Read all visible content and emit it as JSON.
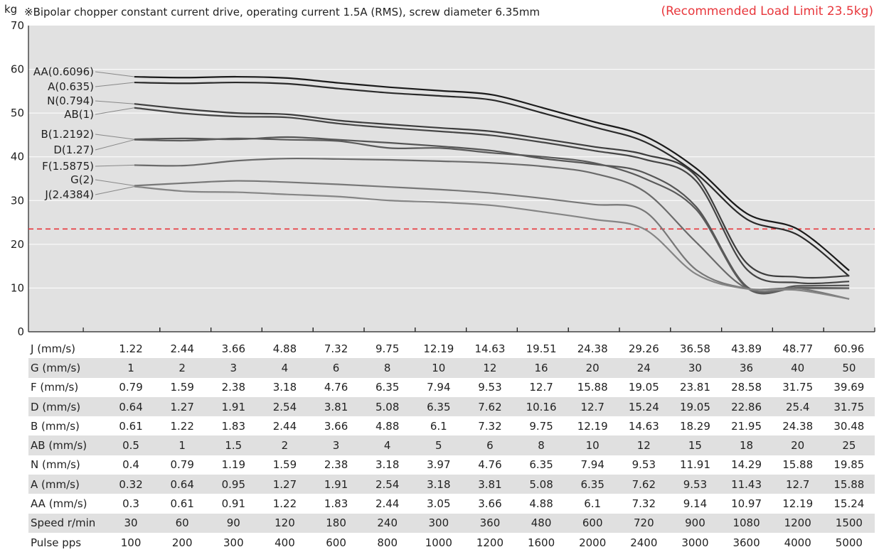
{
  "chart_data": {
    "type": "line",
    "title": "※Bipolar chopper constant current drive, operating current 1.5A (RMS), screw diameter 6.35mm",
    "ylabel": "kg",
    "ylim": [
      0,
      70
    ],
    "yticks": [
      0,
      10,
      20,
      30,
      40,
      50,
      60,
      70
    ],
    "grid": true,
    "pulse_pps": [
      100,
      200,
      300,
      400,
      600,
      800,
      1000,
      1200,
      1600,
      2000,
      2400,
      3000,
      3600,
      4000,
      5000
    ],
    "limit": {
      "label": "(Recommended Load Limit 23.5kg)",
      "value": 23.5,
      "color": "#e8373c"
    },
    "series": [
      {
        "name": "AA(0.6096)",
        "color": "#1a1a1a",
        "values": [
          58.3,
          58.1,
          58.3,
          58.0,
          56.9,
          55.9,
          55.1,
          54.2,
          51.2,
          48.0,
          44.7,
          37.4,
          27.0,
          23.4,
          14.0
        ]
      },
      {
        "name": "A(0.635)",
        "color": "#2a2a2a",
        "values": [
          57.0,
          56.8,
          57.0,
          56.7,
          55.6,
          54.6,
          53.9,
          53.0,
          50.0,
          46.8,
          43.4,
          36.2,
          25.7,
          22.1,
          12.7
        ]
      },
      {
        "name": "N(0.794)",
        "color": "#3d3d3d",
        "values": [
          52.1,
          50.9,
          50.0,
          49.7,
          48.3,
          47.4,
          46.6,
          45.8,
          44.1,
          42.3,
          40.5,
          35.6,
          15.6,
          12.5,
          12.8
        ]
      },
      {
        "name": "AB(1)",
        "color": "#454545",
        "values": [
          51.2,
          49.9,
          49.2,
          49.0,
          47.6,
          46.6,
          45.8,
          44.9,
          43.3,
          41.4,
          39.4,
          34.5,
          14.2,
          11.2,
          11.5
        ]
      },
      {
        "name": "B(1.2192)",
        "color": "#555555",
        "values": [
          44.0,
          44.2,
          44.0,
          44.5,
          43.9,
          43.2,
          42.4,
          41.4,
          39.6,
          38.3,
          36.3,
          28.6,
          10.3,
          10.5,
          10.6
        ]
      },
      {
        "name": "D(1.27)",
        "color": "#5a5a5a",
        "values": [
          43.9,
          43.7,
          44.2,
          43.9,
          43.6,
          42.0,
          42.0,
          40.9,
          40.0,
          38.6,
          35.0,
          28.0,
          10.0,
          10.1,
          10.0
        ]
      },
      {
        "name": "F(1.5875)",
        "color": "#6a6a6a",
        "values": [
          38.1,
          38.0,
          39.1,
          39.6,
          39.5,
          39.3,
          39.0,
          38.6,
          37.8,
          36.2,
          32.0,
          20.5,
          9.9,
          9.9,
          9.9
        ]
      },
      {
        "name": "G(2)",
        "color": "#777777",
        "values": [
          33.4,
          34.0,
          34.5,
          34.2,
          33.7,
          33.1,
          32.5,
          31.7,
          30.5,
          29.1,
          27.5,
          14.2,
          9.9,
          9.9,
          7.5
        ]
      },
      {
        "name": "J(2.4384)",
        "color": "#858585",
        "values": [
          33.2,
          32.1,
          31.9,
          31.4,
          30.9,
          30.0,
          29.6,
          28.9,
          27.4,
          25.7,
          23.4,
          13.2,
          9.8,
          9.5,
          7.5
        ]
      }
    ]
  },
  "table": {
    "rows": [
      {
        "label": "J (mm/s)",
        "values": [
          "1.22",
          "2.44",
          "3.66",
          "4.88",
          "7.32",
          "9.75",
          "12.19",
          "14.63",
          "19.51",
          "24.38",
          "29.26",
          "36.58",
          "43.89",
          "48.77",
          "60.96"
        ]
      },
      {
        "label": "G (mm/s)",
        "values": [
          "1",
          "2",
          "3",
          "4",
          "6",
          "8",
          "10",
          "12",
          "16",
          "20",
          "24",
          "30",
          "36",
          "40",
          "50"
        ]
      },
      {
        "label": "F (mm/s)",
        "values": [
          "0.79",
          "1.59",
          "2.38",
          "3.18",
          "4.76",
          "6.35",
          "7.94",
          "9.53",
          "12.7",
          "15.88",
          "19.05",
          "23.81",
          "28.58",
          "31.75",
          "39.69"
        ]
      },
      {
        "label": "D (mm/s)",
        "values": [
          "0.64",
          "1.27",
          "1.91",
          "2.54",
          "3.81",
          "5.08",
          "6.35",
          "7.62",
          "10.16",
          "12.7",
          "15.24",
          "19.05",
          "22.86",
          "25.4",
          "31.75"
        ]
      },
      {
        "label": "B (mm/s)",
        "values": [
          "0.61",
          "1.22",
          "1.83",
          "2.44",
          "3.66",
          "4.88",
          "6.1",
          "7.32",
          "9.75",
          "12.19",
          "14.63",
          "18.29",
          "21.95",
          "24.38",
          "30.48"
        ]
      },
      {
        "label": "AB (mm/s)",
        "values": [
          "0.5",
          "1",
          "1.5",
          "2",
          "3",
          "4",
          "5",
          "6",
          "8",
          "10",
          "12",
          "15",
          "18",
          "20",
          "25"
        ]
      },
      {
        "label": "N (mm/s)",
        "values": [
          "0.4",
          "0.79",
          "1.19",
          "1.59",
          "2.38",
          "3.18",
          "3.97",
          "4.76",
          "6.35",
          "7.94",
          "9.53",
          "11.91",
          "14.29",
          "15.88",
          "19.85"
        ]
      },
      {
        "label": "A (mm/s)",
        "values": [
          "0.32",
          "0.64",
          "0.95",
          "1.27",
          "1.91",
          "2.54",
          "3.18",
          "3.81",
          "5.08",
          "6.35",
          "7.62",
          "9.53",
          "11.43",
          "12.7",
          "15.88"
        ]
      },
      {
        "label": "AA (mm/s)",
        "values": [
          "0.3",
          "0.61",
          "0.91",
          "1.22",
          "1.83",
          "2.44",
          "3.05",
          "3.66",
          "4.88",
          "6.1",
          "7.32",
          "9.14",
          "10.97",
          "12.19",
          "15.24"
        ]
      },
      {
        "label": "Speed  r/min",
        "values": [
          "30",
          "60",
          "90",
          "120",
          "180",
          "240",
          "300",
          "360",
          "480",
          "600",
          "720",
          "900",
          "1080",
          "1200",
          "1500"
        ]
      },
      {
        "label": "Pulse   pps",
        "values": [
          "100",
          "200",
          "300",
          "400",
          "600",
          "800",
          "1000",
          "1200",
          "1600",
          "2000",
          "2400",
          "3000",
          "3600",
          "4000",
          "5000"
        ]
      }
    ]
  }
}
